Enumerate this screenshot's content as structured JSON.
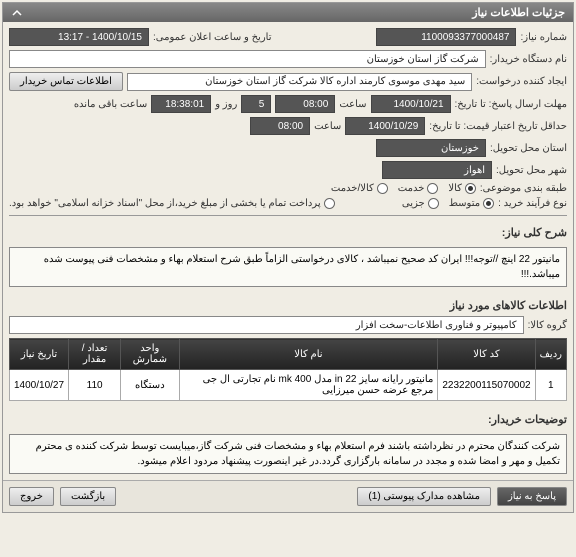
{
  "header": {
    "title": "جزئیات اطلاعات نیاز"
  },
  "fields": {
    "need_number": {
      "label": "شماره نیاز:",
      "value": "1100093377000487"
    },
    "public_datetime": {
      "label": "تاریخ و ساعت اعلان عمومی:",
      "value": "1400/10/15 - 13:17"
    },
    "buyer_name": {
      "label": "نام دستگاه خریدار:",
      "value": "شرکت گاز استان خوزستان"
    },
    "requester": {
      "label": "ایجاد کننده درخواست:",
      "value": "سید مهدی موسوی کارمند اداره کالا شرکت گاز استان خوزستان"
    },
    "contact_btn": "اطلاعات تماس خریدار",
    "response_deadline": {
      "label": "مهلت ارسال پاسخ: تا تاریخ:",
      "date": "1400/10/21",
      "time_label": "ساعت",
      "time": "08:00",
      "days": "5",
      "remaining": "روز و",
      "countdown": "18:38:01",
      "remaining2": "ساعت باقی مانده"
    },
    "validity": {
      "label": "حداقل تاریخ اعتبار قیمت: تا تاریخ:",
      "date": "1400/10/29",
      "time_label": "ساعت",
      "time": "08:00"
    },
    "delivery_province": {
      "label": "استان محل تحویل:",
      "value": "خوزستان"
    },
    "delivery_city": {
      "label": "شهر محل تحویل:",
      "value": "اهواز"
    },
    "request_class": {
      "label": "طبقه بندی موضوعی:"
    },
    "class_options": [
      {
        "label": "کالا",
        "checked": true
      },
      {
        "label": "خدمت",
        "checked": false
      },
      {
        "label": "کالا/خدمت",
        "checked": false
      }
    ],
    "purchase_process": {
      "label": "نوع فرآیند خرید :"
    },
    "process_options": [
      {
        "label": "متوسط",
        "checked": true
      },
      {
        "label": "جزیی",
        "checked": false
      }
    ],
    "payment_note": "پرداخت تمام یا بخشی از مبلغ خرید،از محل \"اسناد خزانه اسلامی\" خواهد بود.",
    "payment_checked": false
  },
  "need_summary": {
    "label": "شرح کلی نیاز:",
    "text": "مانیتور 22 اینچ   //توجه!!! ایران کد صحیح نمیباشد ، کالای درخواستی الزاماً طبق شرح استعلام بهاء و مشخصات فنی پیوست شده میباشد.!!!"
  },
  "goods_section": {
    "title": "اطلاعات کالاهای مورد نیاز",
    "group_label": "گروه کالا:",
    "group_value": "کامپیوتر و فناوری اطلاعات-سخت افزار"
  },
  "table": {
    "headers": [
      "ردیف",
      "کد کالا",
      "نام کالا",
      "واحد شمارش",
      "تعداد / مقدار",
      "تاریخ نیاز"
    ],
    "rows": [
      {
        "idx": "1",
        "code": "2232200115070002",
        "name": "مانیتور رایانه سایز 22 in مدل mk 400 نام تجارتی ال جی مرجع عرضه حسن میرزایی",
        "unit": "دستگاه",
        "qty": "110",
        "date": "1400/10/27"
      }
    ]
  },
  "buyer_notes": {
    "label": "توضیحات خریدار:",
    "text": "شرکت کنندگان محترم در نظرداشته باشند فرم استعلام بهاء و مشخصات فنی شرکت گاز،میبایست توسط شرکت کننده ی محترم  تکمیل و مهر و امضا شده و مجدد در سامانه بارگزاری گردد.در غیر اینصورت پیشنهاد مردود اعلام میشود."
  },
  "footer": {
    "respond": "پاسخ به نیاز",
    "attachments": "مشاهده مدارک پیوستی (1)",
    "back": "بازگشت",
    "exit": "خروج"
  }
}
